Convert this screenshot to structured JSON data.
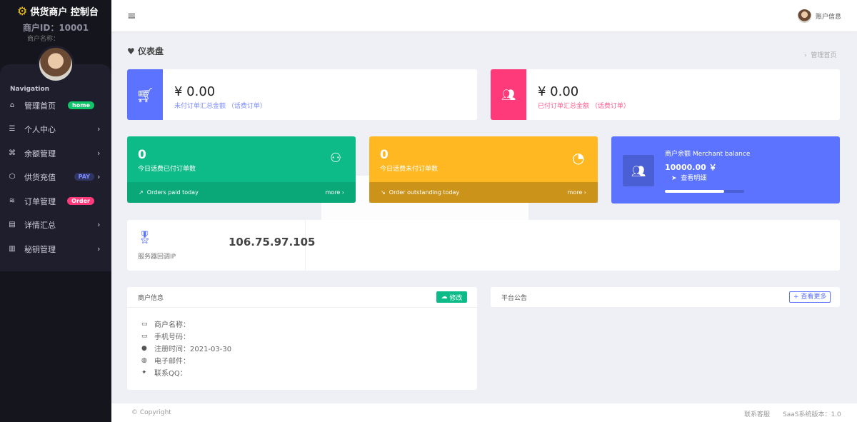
{
  "sidebar": {
    "brand": "供货商户 控制台",
    "merchant_id": "商户ID：10001",
    "merchant_name": "商户名称：",
    "nav_heading": "Navigation",
    "items": [
      {
        "label": "管理首页",
        "icon": "home-icon",
        "badge": "home",
        "badge_color": "#10c469"
      },
      {
        "label": "个人中心",
        "icon": "list-icon"
      },
      {
        "label": "余额管理",
        "icon": "command-icon"
      },
      {
        "label": "供货充值",
        "icon": "box-icon",
        "badge": "PAY",
        "badge_color": "#2f3560"
      },
      {
        "label": "订单管理",
        "icon": "layers-icon",
        "badge": "Order",
        "badge_color": "#ff5b7f"
      },
      {
        "label": "详情汇总",
        "icon": "document-icon"
      },
      {
        "label": "秘钥管理",
        "icon": "map-icon"
      }
    ]
  },
  "header": {
    "account": "账户信息"
  },
  "page": {
    "title": "仪表盘",
    "breadcrumb": "管理首页"
  },
  "summary": [
    {
      "amount": "¥ 0.00",
      "label": "未付订单汇总金额 （话费订单）",
      "color": "#5b73fe"
    },
    {
      "amount": "¥ 0.00",
      "label": "已付订单汇总金额 （话费订单）",
      "color": "#ff3a7b"
    }
  ],
  "stats": [
    {
      "value": "0",
      "label": "今日话费已付订单数",
      "footer": "Orders paid today",
      "more": "more",
      "color": "#0cbb87"
    },
    {
      "value": "0",
      "label": "今日话费未付订单数",
      "footer": "Order outstanding today",
      "more": "more",
      "color": "#ffb822"
    }
  ],
  "balance": {
    "title": "商户余额 Merchant balance",
    "amount": "10000.00 ￥",
    "link": "查看明细",
    "progress": 0.75
  },
  "server": {
    "ip": "106.75.97.105",
    "label": "服务器回调IP"
  },
  "merchant_info": {
    "title": "商户信息",
    "edit": "修改",
    "rows": [
      {
        "label": "商户名称：",
        "value": ""
      },
      {
        "label": "手机号码：",
        "value": ""
      },
      {
        "label": "注册时间：",
        "value": "2021-03-30"
      },
      {
        "label": "电子邮件：",
        "value": ""
      },
      {
        "label": "联系QQ：",
        "value": ""
      }
    ]
  },
  "notice": {
    "title": "平台公告",
    "more": "+ 查看更多"
  },
  "footer": {
    "copyright": "© Copyright",
    "contact": "联系客服",
    "version": "SaaS系统版本：1.0"
  }
}
